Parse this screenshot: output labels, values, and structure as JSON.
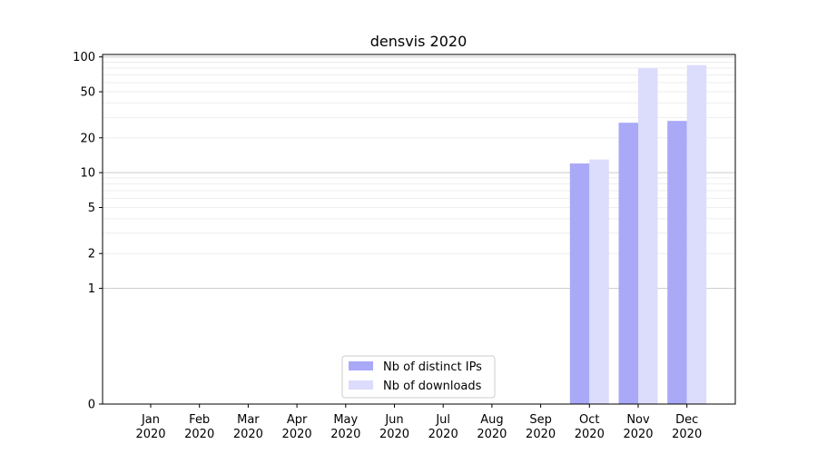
{
  "chart_data": {
    "type": "bar",
    "title": "densvis 2020",
    "xlabel": "",
    "ylabel": "",
    "y_scale": "symlog",
    "y_ticks": [
      0,
      1,
      2,
      5,
      10,
      20,
      50,
      100
    ],
    "y_tick_labels": [
      "0",
      "1",
      "2",
      "5",
      "10",
      "20",
      "50",
      "100"
    ],
    "ylim": [
      0,
      105
    ],
    "grid": "horizontal",
    "legend_position": "bottom-center",
    "categories": [
      "Jan\n2020",
      "Feb\n2020",
      "Mar\n2020",
      "Apr\n2020",
      "May\n2020",
      "Jun\n2020",
      "Jul\n2020",
      "Aug\n2020",
      "Sep\n2020",
      "Oct\n2020",
      "Nov\n2020",
      "Dec\n2020"
    ],
    "category_lines": [
      [
        "Jan",
        "2020"
      ],
      [
        "Feb",
        "2020"
      ],
      [
        "Mar",
        "2020"
      ],
      [
        "Apr",
        "2020"
      ],
      [
        "May",
        "2020"
      ],
      [
        "Jun",
        "2020"
      ],
      [
        "Jul",
        "2020"
      ],
      [
        "Aug",
        "2020"
      ],
      [
        "Sep",
        "2020"
      ],
      [
        "Oct",
        "2020"
      ],
      [
        "Nov",
        "2020"
      ],
      [
        "Dec",
        "2020"
      ]
    ],
    "series": [
      {
        "name": "Nb of distinct IPs",
        "color": "#a9a9f8",
        "values": [
          0,
          0,
          0,
          0,
          0,
          0,
          0,
          0,
          0,
          12,
          27,
          28
        ]
      },
      {
        "name": "Nb of downloads",
        "color": "#dcdcfc",
        "values": [
          0,
          0,
          0,
          0,
          0,
          0,
          0,
          0,
          0,
          13,
          80,
          85
        ]
      }
    ]
  }
}
